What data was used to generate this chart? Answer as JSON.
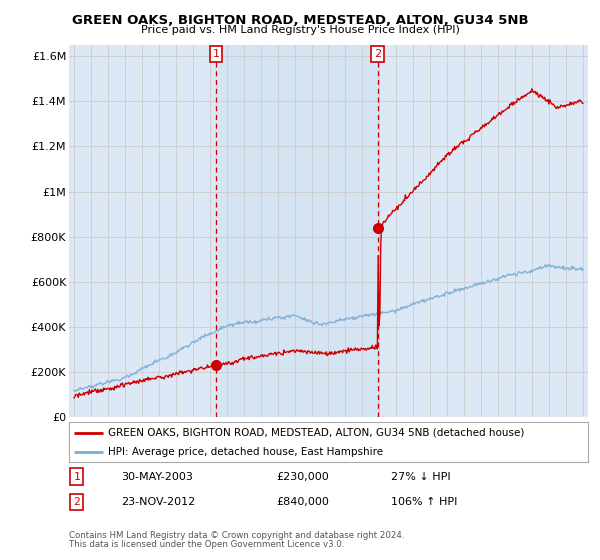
{
  "title": "GREEN OAKS, BIGHTON ROAD, MEDSTEAD, ALTON, GU34 5NB",
  "subtitle": "Price paid vs. HM Land Registry's House Price Index (HPI)",
  "legend_label_red": "GREEN OAKS, BIGHTON ROAD, MEDSTEAD, ALTON, GU34 5NB (detached house)",
  "legend_label_blue": "HPI: Average price, detached house, East Hampshire",
  "sale1_date": "30-MAY-2003",
  "sale1_price": "£230,000",
  "sale1_hpi": "27% ↓ HPI",
  "sale2_date": "23-NOV-2012",
  "sale2_price": "£840,000",
  "sale2_hpi": "106% ↑ HPI",
  "footer1": "Contains HM Land Registry data © Crown copyright and database right 2024.",
  "footer2": "This data is licensed under the Open Government Licence v3.0.",
  "ylim": [
    0,
    1650000
  ],
  "yticks": [
    0,
    200000,
    400000,
    600000,
    800000,
    1000000,
    1200000,
    1400000,
    1600000
  ],
  "ytick_labels": [
    "£0",
    "£200K",
    "£400K",
    "£600K",
    "£800K",
    "£1M",
    "£1.2M",
    "£1.4M",
    "£1.6M"
  ],
  "xlim_start": 1994.7,
  "xlim_end": 2025.3,
  "sale1_x": 2003.38,
  "sale1_y": 230000,
  "sale2_x": 2012.9,
  "sale2_y": 840000,
  "red_color": "#cc0000",
  "blue_color": "#7aadd4",
  "bg_plot": "#dce8f5",
  "bg_fig": "#ffffff",
  "grid_color": "#cccccc",
  "shade_color": "#c8ddf0",
  "vline_color": "#cc0000",
  "title_color": "#000000"
}
